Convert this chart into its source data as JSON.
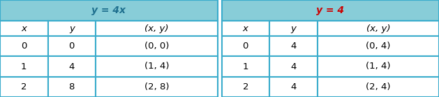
{
  "table1_title": "y = 4x",
  "table1_title_color": "#1e6f8e",
  "table1_headers": [
    "x",
    "y",
    "(x, y)"
  ],
  "table1_rows": [
    [
      "0",
      "0",
      "(0, 0)"
    ],
    [
      "1",
      "4",
      "(1, 4)"
    ],
    [
      "2",
      "8",
      "(2, 8)"
    ]
  ],
  "table2_title": "y = 4",
  "table2_title_color": "#cc0000",
  "table2_headers": [
    "x",
    "y",
    "(x, y)"
  ],
  "table2_rows": [
    [
      "0",
      "4",
      "(0, 4)"
    ],
    [
      "1",
      "4",
      "(1, 4)"
    ],
    [
      "2",
      "4",
      "(2, 4)"
    ]
  ],
  "header_bg": "#88cdd8",
  "cell_bg": "#ffffff",
  "grid_color": "#3aaccc",
  "text_color": "#000000",
  "fontsize": 9.5,
  "fig_width": 6.29,
  "fig_height": 1.4,
  "dpi": 100
}
